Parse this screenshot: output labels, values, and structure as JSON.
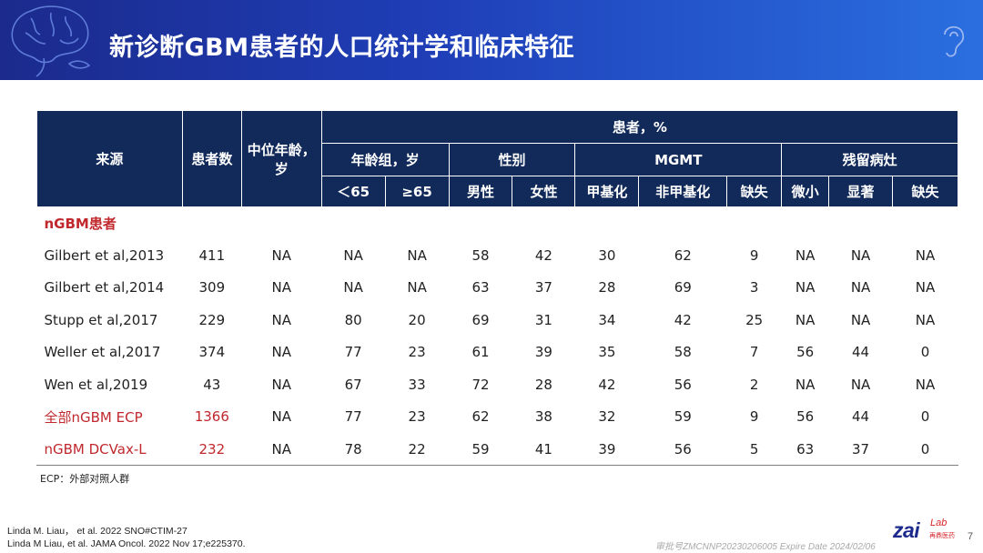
{
  "title": "新诊断GBM患者的人口统计学和临床特征",
  "table": {
    "h_source": "来源",
    "h_count": "患者数",
    "h_median_age": "中位年龄，岁",
    "h_percent": "患者，%",
    "g_age": "年龄组，岁",
    "g_sex": "性别",
    "g_mgmt": "MGMT",
    "g_residual": "残留病灶",
    "sub": [
      "＜65",
      "≥65",
      "男性",
      "女性",
      "甲基化",
      "非甲基化",
      "缺失",
      "微小",
      "显著",
      "缺失"
    ],
    "section": "nGBM患者",
    "rows": [
      [
        "Gilbert et al,2013",
        "411",
        "NA",
        "NA",
        "NA",
        "58",
        "42",
        "30",
        "62",
        "9",
        "NA",
        "NA",
        "NA"
      ],
      [
        "Gilbert et al,2014",
        "309",
        "NA",
        "NA",
        "NA",
        "63",
        "37",
        "28",
        "69",
        "3",
        "NA",
        "NA",
        "NA"
      ],
      [
        "Stupp et al,2017",
        "229",
        "NA",
        "80",
        "20",
        "69",
        "31",
        "34",
        "42",
        "25",
        "NA",
        "NA",
        "NA"
      ],
      [
        "Weller et al,2017",
        "374",
        "NA",
        "77",
        "23",
        "61",
        "39",
        "35",
        "58",
        "7",
        "56",
        "44",
        "0"
      ],
      [
        "Wen et al,2019",
        "43",
        "NA",
        "67",
        "33",
        "72",
        "28",
        "42",
        "56",
        "2",
        "NA",
        "NA",
        "NA"
      ],
      [
        "全部nGBM ECP",
        "1366",
        "NA",
        "77",
        "23",
        "62",
        "38",
        "32",
        "59",
        "9",
        "56",
        "44",
        "0"
      ],
      [
        "nGBM DCVax-L",
        "232",
        "NA",
        "78",
        "22",
        "59",
        "41",
        "39",
        "56",
        "5",
        "63",
        "37",
        "0"
      ]
    ]
  },
  "footnote": "ECP：外部对照人群",
  "refs": [
    "Linda M. Liau， et al. 2022 SNO#CTIM-27",
    "Linda M Liau, et al. JAMA Oncol. 2022 Nov 17;e225370."
  ],
  "logo": {
    "zai": "zai",
    "lab": "Lab",
    "cn": "再鼎医药"
  },
  "page_number": "7",
  "approval": "审批号ZMCNNP20230206005 Expire Date 2024/02/06",
  "colors": {
    "header": "#122a5a",
    "highlight": "#c0282d",
    "banner": "#1f3fb8"
  }
}
